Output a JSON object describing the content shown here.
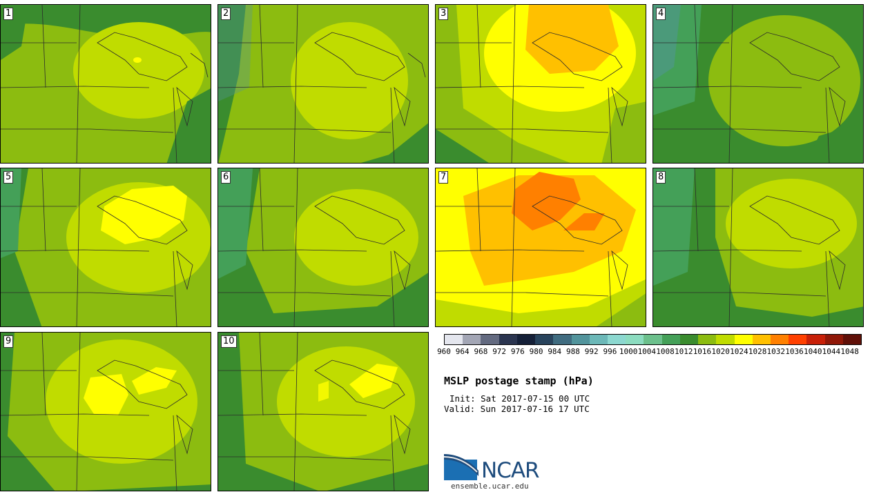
{
  "colorbar": {
    "levels": [
      "960",
      "964",
      "968",
      "972",
      "976",
      "980",
      "984",
      "988",
      "992",
      "996",
      "1000",
      "1004",
      "1008",
      "1012",
      "1016",
      "1020",
      "1024",
      "1028",
      "1032",
      "1036",
      "1040",
      "1044",
      "1048"
    ],
    "colors": [
      "#e4e6ee",
      "#a3a6b5",
      "#636a80",
      "#2b3550",
      "#152038",
      "#28435c",
      "#406c80",
      "#52949c",
      "#6cb8b8",
      "#8cd8d0",
      "#8cdcc0",
      "#6cc08c",
      "#44a058",
      "#3a8c2e",
      "#8cbc10",
      "#c0dc00",
      "#ffff00",
      "#ffc000",
      "#ff8000",
      "#ff4000",
      "#c82008",
      "#901808",
      "#601008"
    ]
  },
  "title": "MSLP postage stamp (hPa)",
  "init": "Init: Sat 2017-07-15 00 UTC",
  "valid": "Valid: Sun 2017-07-16 17 UTC",
  "logo": {
    "text": "NCAR",
    "url": "ensemble.ucar.edu"
  },
  "members": [
    {
      "label": "1"
    },
    {
      "label": "2"
    },
    {
      "label": "3"
    },
    {
      "label": "4"
    },
    {
      "label": "5"
    },
    {
      "label": "6"
    },
    {
      "label": "7"
    },
    {
      "label": "8"
    },
    {
      "label": "9"
    },
    {
      "label": "10"
    }
  ]
}
